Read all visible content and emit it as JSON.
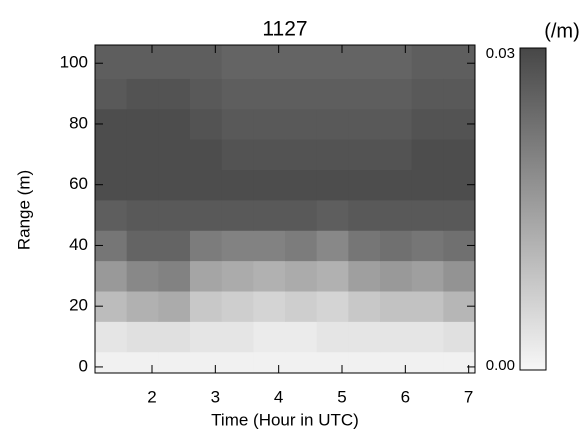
{
  "chart_data": {
    "type": "heatmap",
    "title": "1127",
    "xlabel": "Time (Hour in UTC)",
    "ylabel": "Range (m)",
    "x": [
      1.35,
      1.85,
      2.35,
      2.85,
      3.35,
      3.85,
      4.35,
      4.85,
      5.35,
      5.85,
      6.35,
      6.85
    ],
    "y": [
      0,
      10,
      20,
      30,
      40,
      50,
      60,
      70,
      80,
      90,
      100
    ],
    "z": [
      [
        0.001,
        0.001,
        0.001,
        0.001,
        0.001,
        0.001,
        0.001,
        0.001,
        0.001,
        0.001,
        0.001,
        0.001
      ],
      [
        0.003,
        0.004,
        0.004,
        0.003,
        0.003,
        0.002,
        0.002,
        0.003,
        0.003,
        0.003,
        0.003,
        0.004
      ],
      [
        0.01,
        0.012,
        0.013,
        0.008,
        0.007,
        0.006,
        0.007,
        0.006,
        0.008,
        0.009,
        0.009,
        0.011
      ],
      [
        0.016,
        0.019,
        0.02,
        0.014,
        0.013,
        0.012,
        0.013,
        0.012,
        0.015,
        0.016,
        0.015,
        0.017
      ],
      [
        0.022,
        0.025,
        0.025,
        0.021,
        0.02,
        0.02,
        0.021,
        0.019,
        0.022,
        0.023,
        0.022,
        0.023
      ],
      [
        0.026,
        0.027,
        0.027,
        0.027,
        0.027,
        0.027,
        0.027,
        0.026,
        0.027,
        0.027,
        0.027,
        0.027
      ],
      [
        0.029,
        0.029,
        0.029,
        0.029,
        0.029,
        0.029,
        0.029,
        0.029,
        0.029,
        0.029,
        0.029,
        0.029
      ],
      [
        0.029,
        0.029,
        0.029,
        0.029,
        0.028,
        0.028,
        0.028,
        0.028,
        0.028,
        0.028,
        0.029,
        0.029
      ],
      [
        0.029,
        0.029,
        0.029,
        0.028,
        0.027,
        0.027,
        0.027,
        0.027,
        0.027,
        0.027,
        0.028,
        0.028
      ],
      [
        0.027,
        0.028,
        0.028,
        0.027,
        0.026,
        0.026,
        0.026,
        0.026,
        0.026,
        0.026,
        0.027,
        0.027
      ],
      [
        0.026,
        0.026,
        0.026,
        0.026,
        0.025,
        0.025,
        0.025,
        0.025,
        0.025,
        0.025,
        0.026,
        0.026
      ]
    ],
    "xlim": [
      1.1,
      7.1
    ],
    "ylim": [
      -2,
      106
    ],
    "xticks": [
      2,
      3,
      4,
      5,
      6,
      7
    ],
    "yticks": [
      0,
      20,
      40,
      60,
      80,
      100
    ],
    "colorscale": [
      "#f7f7f7",
      "#474747"
    ],
    "colorbar_label": "(/m)",
    "zlim": [
      0,
      0.03
    ],
    "zticks": [
      {
        "value": 0,
        "label": "0.00"
      },
      {
        "value": 0.03,
        "label": "0.03"
      }
    ]
  }
}
